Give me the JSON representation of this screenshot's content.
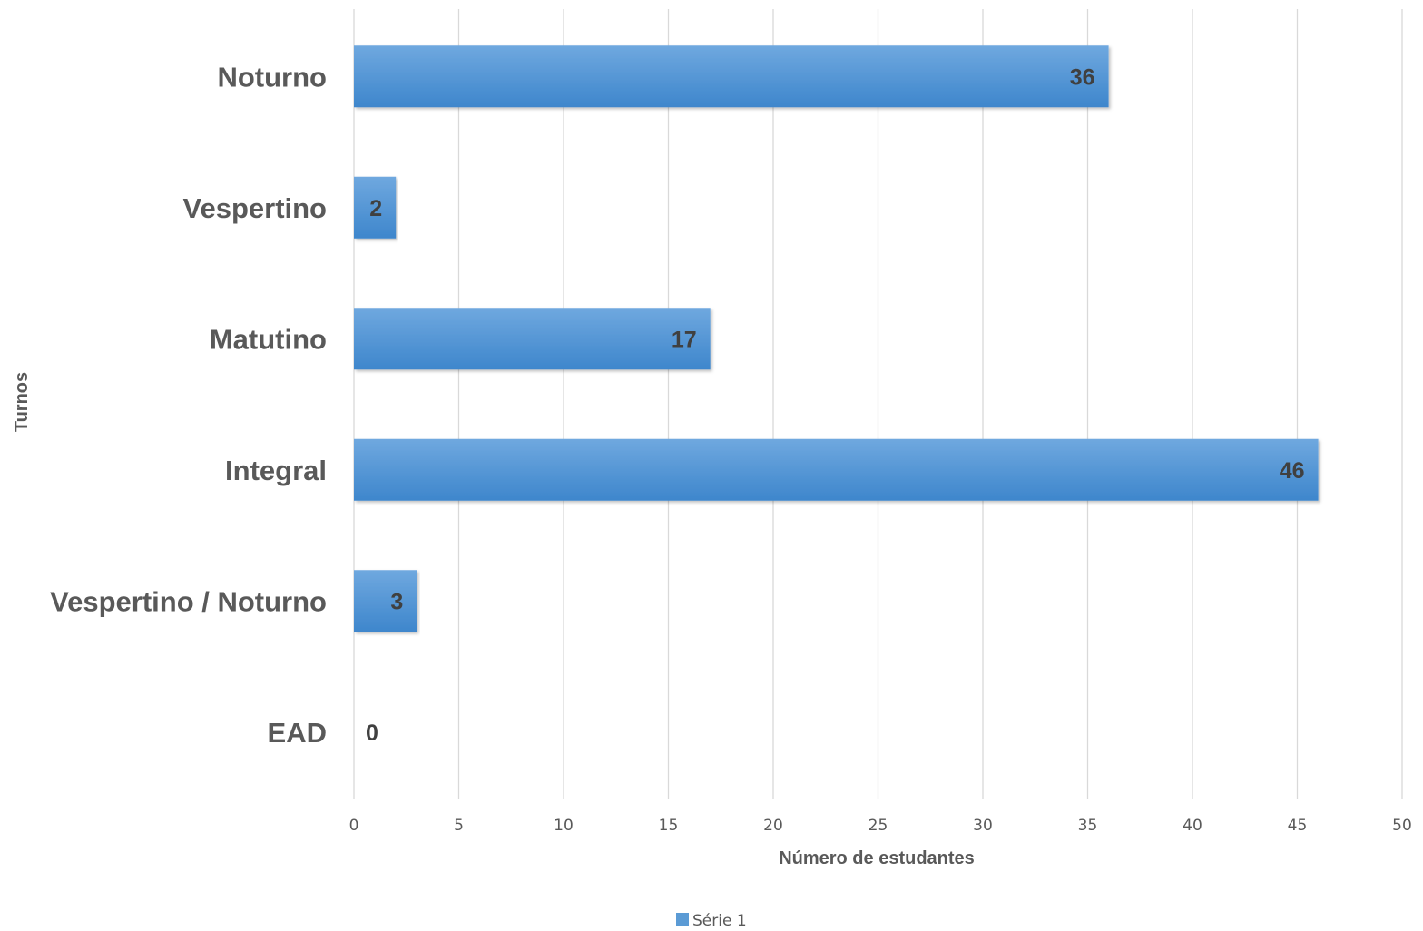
{
  "chart_data": {
    "type": "bar",
    "orientation": "horizontal",
    "categories": [
      "Noturno",
      "Vespertino",
      "Matutino",
      "Integral",
      "Vespertino / Noturno",
      "EAD"
    ],
    "series": [
      {
        "name": "Série 1",
        "values": [
          36,
          2,
          17,
          46,
          3,
          0
        ],
        "color": "#5B9BD5"
      }
    ],
    "xlabel": "Número de estudantes",
    "ylabel": "Turnos",
    "xlim": [
      0,
      50
    ],
    "xticks": [
      "0",
      "5",
      "10",
      "15",
      "20",
      "25",
      "30",
      "35",
      "40",
      "45",
      "50"
    ],
    "grid": true,
    "legend": "bottom",
    "data_labels": true
  }
}
